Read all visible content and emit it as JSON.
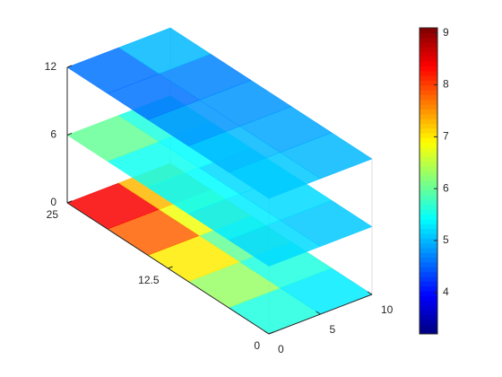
{
  "chart_data": {
    "type": "slice",
    "xlim": [
      0,
      10
    ],
    "xticks": [
      0,
      5,
      10
    ],
    "ylim": [
      0,
      25
    ],
    "yticks": [
      0,
      12.5,
      25
    ],
    "zlim": [
      0,
      12
    ],
    "zticks": [
      0,
      6,
      12
    ],
    "slices": [
      {
        "z": 0,
        "values": [
          [
            5.6,
            5.3
          ],
          [
            6.3,
            5.6
          ],
          [
            7.0,
            6.0
          ],
          [
            7.8,
            6.8
          ],
          [
            8.4,
            7.3
          ]
        ]
      },
      {
        "z": 6,
        "values": [
          [
            5.2,
            5.1
          ],
          [
            5.3,
            5.2
          ],
          [
            5.4,
            5.2
          ],
          [
            5.5,
            5.4
          ],
          [
            6.0,
            5.6
          ]
        ]
      },
      {
        "z": 12,
        "values": [
          [
            5.1,
            5.0
          ],
          [
            5.0,
            4.9
          ],
          [
            4.8,
            4.8
          ],
          [
            4.6,
            4.7
          ],
          [
            4.6,
            5.0
          ]
        ]
      }
    ],
    "colormap": "jet",
    "clim": [
      3.2,
      9.1
    ],
    "cticks": [
      4,
      5,
      6,
      7,
      8,
      9
    ]
  }
}
